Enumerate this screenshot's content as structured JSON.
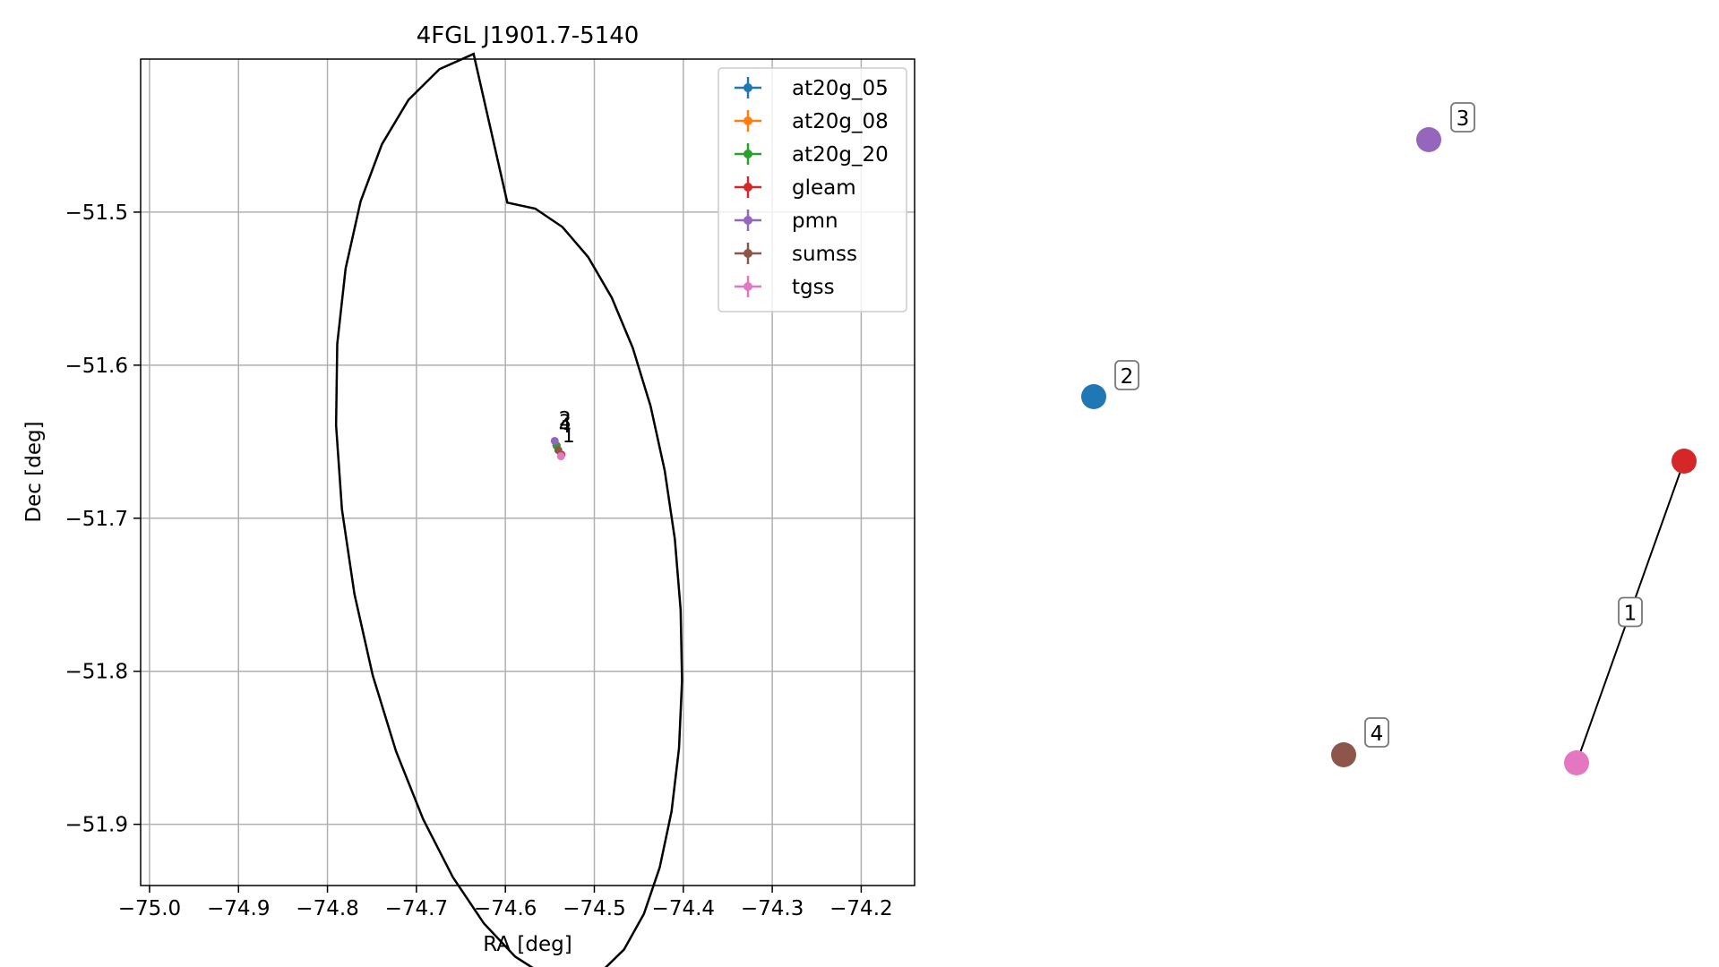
{
  "chart_data": [
    {
      "type": "scatter",
      "title": "4FGL J1901.7-5140",
      "xlabel": "RA [deg]",
      "ylabel": "Dec [deg]",
      "xlim": [
        -75.01,
        -74.14
      ],
      "ylim": [
        -51.94,
        -51.4
      ],
      "xticks": [
        -75.0,
        -74.9,
        -74.8,
        -74.7,
        -74.6,
        -74.5,
        -74.4,
        -74.3,
        -74.2
      ],
      "xtick_labels": [
        "−75.0",
        "−74.9",
        "−74.8",
        "−74.7",
        "−74.6",
        "−74.5",
        "−74.4",
        "−74.3",
        "−74.2"
      ],
      "yticks": [
        -51.5,
        -51.6,
        -51.7,
        -51.8,
        -51.9
      ],
      "ytick_labels": [
        "−51.5",
        "−51.6",
        "−51.7",
        "−51.8",
        "−51.9"
      ],
      "grid": true,
      "legend_placement": "top-right",
      "series": [
        {
          "name": "at20g_05",
          "color": "#1f77b4",
          "x": [
            -74.5425
          ],
          "y": [
            -51.6525
          ]
        },
        {
          "name": "at20g_08",
          "color": "#ff7f0e",
          "x": [
            -74.5425
          ],
          "y": [
            -51.6525
          ]
        },
        {
          "name": "at20g_20",
          "color": "#2ca02c",
          "x": [
            -74.5425
          ],
          "y": [
            -51.6525
          ]
        },
        {
          "name": "gleam",
          "color": "#d62728",
          "x": [
            -74.537
          ],
          "y": [
            -51.6585
          ]
        },
        {
          "name": "pmn",
          "color": "#9467bd",
          "x": [
            -74.5445
          ],
          "y": [
            -51.6495
          ]
        },
        {
          "name": "sumss",
          "color": "#8c564b",
          "x": [
            -74.5405
          ],
          "y": [
            -51.6555
          ]
        },
        {
          "name": "tgss",
          "color": "#e377c2",
          "x": [
            -74.5375
          ],
          "y": [
            -51.6595
          ]
        }
      ],
      "ellipse": {
        "label": "4FGL J1901.7-5140",
        "center_ra": -74.5725,
        "center_dec": -51.6707,
        "color": "#000000",
        "outline": [
          [
            -74.5978,
            -51.4938
          ],
          [
            -74.5664,
            -51.4977
          ],
          [
            -74.5359,
            -51.5097
          ],
          [
            -74.507,
            -51.5293
          ],
          [
            -74.4804,
            -51.5559
          ],
          [
            -74.4568,
            -51.5887
          ],
          [
            -74.4368,
            -51.6267
          ],
          [
            -74.4209,
            -51.6688
          ],
          [
            -74.4095,
            -51.7136
          ],
          [
            -74.403,
            -51.7598
          ],
          [
            -74.4014,
            -51.8058
          ],
          [
            -74.4048,
            -51.8503
          ],
          [
            -74.4132,
            -51.8916
          ],
          [
            -74.4265,
            -51.9282
          ],
          [
            -74.4443,
            -51.9586
          ],
          [
            -74.4666,
            -51.9818
          ],
          [
            -74.4928,
            -51.9967
          ],
          [
            -74.5224,
            -52.0027
          ],
          [
            -74.5547,
            -51.9992
          ],
          [
            -74.5889,
            -51.9865
          ],
          [
            -74.6241,
            -51.9648
          ],
          [
            -74.659,
            -51.9346
          ],
          [
            -74.6924,
            -51.8967
          ],
          [
            -74.7229,
            -51.8523
          ],
          [
            -74.7491,
            -51.8027
          ],
          [
            -74.7697,
            -51.7494
          ],
          [
            -74.7837,
            -51.6943
          ],
          [
            -74.7903,
            -51.6393
          ],
          [
            -74.789,
            -51.5862
          ],
          [
            -74.7796,
            -51.5369
          ],
          [
            -74.7627,
            -51.4929
          ],
          [
            -74.7388,
            -51.4557
          ],
          [
            -74.7089,
            -51.4266
          ],
          [
            -74.6741,
            -51.4066
          ],
          [
            -74.6357,
            -51.3966
          ],
          [
            -74.5978,
            -51.4938
          ]
        ]
      },
      "point_labels": [
        "2",
        "3",
        "4",
        "1"
      ]
    },
    {
      "type": "network",
      "nodes": [
        {
          "label": "2",
          "color": "#1f77b4"
        },
        {
          "label": "3",
          "color": "#9467bd"
        },
        {
          "label": "",
          "color": "#d62728"
        },
        {
          "label": "4",
          "color": "#8c564b"
        },
        {
          "label": "",
          "color": "#e377c2"
        }
      ],
      "edges": [
        {
          "from": 2,
          "to": 4,
          "label": "1"
        }
      ]
    }
  ]
}
